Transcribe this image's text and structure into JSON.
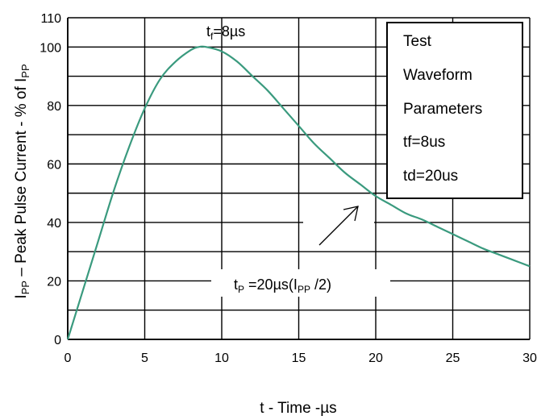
{
  "chart_data": {
    "type": "line",
    "xlabel": "t - Time -µs",
    "ylabel": {
      "main": "I",
      "main_sub": "PP",
      "rest": " – Peak Pulse Current - % of  I",
      "rest_sub": "PP"
    },
    "xlim": [
      0,
      30
    ],
    "ylim": [
      0,
      110
    ],
    "x_ticks": [
      "0",
      "5",
      "10",
      "15",
      "20",
      "25",
      "30"
    ],
    "y_ticks": [
      "0",
      "20",
      "40",
      "60",
      "80",
      "100",
      "110"
    ],
    "grid": true,
    "series": [
      {
        "color": "#3a9a7e",
        "x": [
          0,
          1,
          2,
          3,
          4,
          5,
          6,
          7,
          8,
          8.5,
          9,
          10,
          11,
          12,
          13,
          14,
          15,
          16,
          17,
          18,
          19,
          20,
          21,
          22,
          23,
          24,
          25,
          26,
          27,
          28,
          29,
          30
        ],
        "y": [
          0,
          17,
          34,
          51,
          66,
          79,
          89,
          95,
          99,
          100,
          100,
          98.5,
          95,
          90,
          85,
          79,
          73,
          67,
          62,
          57,
          53,
          49,
          46,
          43,
          41,
          38.5,
          36,
          33.5,
          31,
          29,
          27,
          25
        ]
      }
    ],
    "annotations": {
      "tf": {
        "t": "t",
        "sub": "f",
        "rest": "=8µs"
      },
      "tp": {
        "t": "t",
        "sub": "P",
        "mid": " =20µs(I",
        "sub2": "PP",
        "end": " /2)"
      }
    },
    "legend_box": {
      "lines": [
        "Test",
        "Waveform",
        "Parameters",
        "tf=8us",
        "td=20us"
      ]
    }
  }
}
